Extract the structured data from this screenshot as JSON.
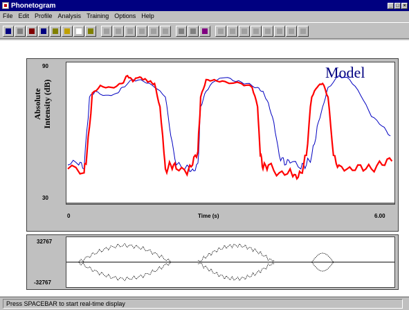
{
  "window": {
    "title": "Phonetogram"
  },
  "menu": [
    "File",
    "Edit",
    "Profile",
    "Analysis",
    "Training",
    "Options",
    "Help"
  ],
  "toolbar": {
    "buttons": [
      "record-icon",
      "open-icon",
      "save-icon",
      "speaker-icon",
      "tools-icon",
      "clock-icon",
      "calendar-icon",
      "folder-icon",
      "new-icon",
      "copy-icon",
      "save-file-icon",
      "waveform-icon",
      "spectrum-icon",
      "pitch-icon",
      "record-button-icon",
      "play-icon",
      "picture-icon",
      "pitch-up-icon",
      "pitch-down-icon",
      "arrow-down-icon",
      "minus-icon",
      "line-up-icon",
      "line-flat-icon",
      "zoom-in-icon",
      "zoom-out-icon"
    ]
  },
  "intensity_chart": {
    "ylabel_line1": "Absolute",
    "ylabel_line2": "Intensity (dB)",
    "ymax_label": "90",
    "ymin_label": "30",
    "xlabel": "Time (s)",
    "xmin_label": "0",
    "xmax_label": "6.00",
    "legend": "Model"
  },
  "waveform_chart": {
    "ymax_label": "32767",
    "ymin_label": "-32767"
  },
  "status": {
    "text": "Press SPACEBAR to start real-time display"
  },
  "colors": {
    "title_bg": "#000080",
    "user_trace": "#ff0000",
    "model_trace": "#0000c0",
    "chrome": "#c0c0c0"
  },
  "chart_data": [
    {
      "type": "line",
      "title": "",
      "xlabel": "Time (s)",
      "ylabel": "Absolute Intensity (dB)",
      "xlim": [
        0,
        6.0
      ],
      "ylim": [
        30,
        90
      ],
      "series": [
        {
          "name": "",
          "color": "#ff0000",
          "x": [
            0.0,
            0.3,
            0.35,
            0.45,
            0.6,
            0.8,
            1.0,
            1.1,
            1.2,
            1.3,
            1.4,
            1.5,
            1.6,
            1.7,
            1.75,
            1.8,
            1.9,
            2.0,
            2.2,
            2.3,
            2.4,
            2.45,
            2.55,
            2.7,
            2.9,
            3.2,
            3.4,
            3.5,
            3.55,
            3.6,
            3.7,
            3.9,
            4.1,
            4.2,
            4.3,
            4.4,
            4.5,
            4.6,
            4.7,
            4.8,
            4.9,
            5.0,
            5.2,
            5.4,
            5.6,
            5.8,
            5.98
          ],
          "y": [
            38,
            36,
            45,
            77,
            81,
            80,
            82,
            86,
            83,
            85,
            84,
            83,
            82,
            70,
            55,
            38,
            40,
            38,
            35,
            40,
            47,
            75,
            84,
            84,
            83,
            82,
            80,
            70,
            45,
            38,
            40,
            36,
            38,
            35,
            36,
            45,
            75,
            80,
            82,
            75,
            45,
            40,
            39,
            40,
            38,
            40,
            42
          ]
        },
        {
          "name": "Model",
          "color": "#0000c0",
          "x": [
            0.0,
            0.2,
            0.3,
            0.4,
            0.5,
            0.7,
            0.9,
            1.0,
            1.2,
            1.4,
            1.6,
            1.8,
            1.9,
            2.0,
            2.2,
            2.3,
            2.4,
            2.45,
            2.55,
            2.7,
            2.9,
            3.1,
            3.3,
            3.5,
            3.6,
            3.7,
            3.8,
            3.9,
            4.0,
            4.1,
            4.3,
            4.4,
            4.5,
            4.6,
            4.7,
            4.8,
            5.0,
            5.2,
            5.4,
            5.6,
            5.8,
            5.95
          ],
          "y": [
            40,
            40,
            38,
            75,
            78,
            76,
            77,
            80,
            84,
            83,
            80,
            75,
            55,
            40,
            40,
            38,
            41,
            70,
            78,
            83,
            85,
            83,
            82,
            80,
            78,
            72,
            62,
            45,
            40,
            41,
            38,
            40,
            45,
            60,
            70,
            80,
            86,
            84,
            76,
            65,
            60,
            55
          ]
        }
      ]
    },
    {
      "type": "line",
      "title": "",
      "xlabel": "",
      "ylabel": "",
      "ylim": [
        -32767,
        32767
      ],
      "series": [
        {
          "name": "",
          "color": "#000000",
          "envelope_segments": [
            [
              0.2,
              1.9
            ],
            [
              2.4,
              3.8
            ],
            [
              4.5,
              4.9
            ]
          ]
        }
      ]
    }
  ]
}
